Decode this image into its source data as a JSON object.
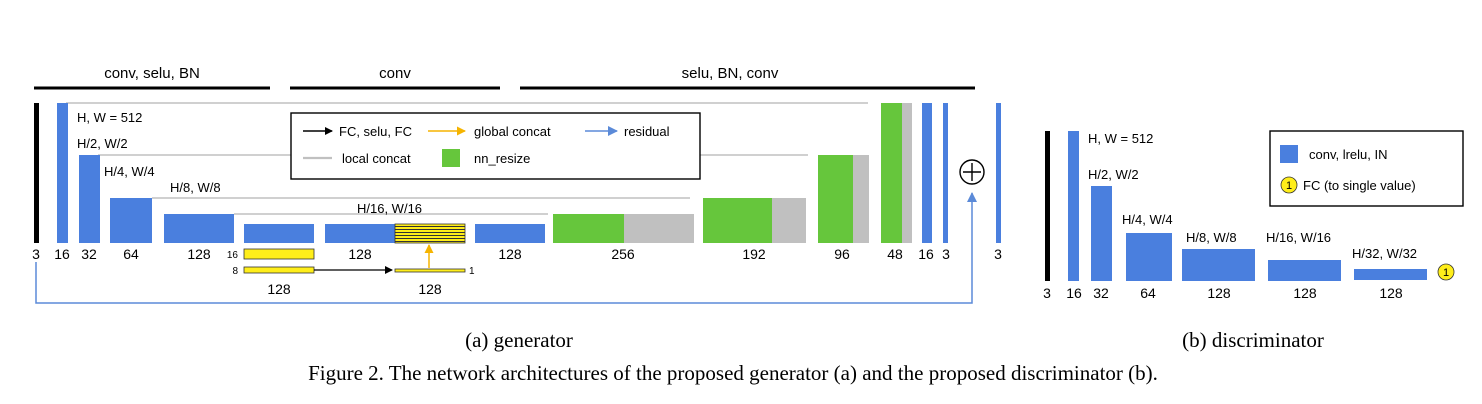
{
  "colors": {
    "block": "#4a7fde",
    "resize": "#66c63c",
    "concat_local": "#c0c0c0",
    "global": "#ffee1a",
    "input": "#000000",
    "residual_arrow": "#5b8ad8",
    "global_arrow": "#f5b400"
  },
  "generator": {
    "header_left": "conv, selu, BN",
    "header_mid": "conv",
    "header_right": "selu, BN, conv",
    "res_512": "H, W = 512",
    "res_2": "H/2, W/2",
    "res_4": "H/4, W/4",
    "res_8": "H/8, W/8",
    "res_16": "H/16, W/16",
    "ch_3a": "3",
    "ch_16a": "16",
    "ch_32": "32",
    "ch_64": "64",
    "ch_128a": "128",
    "ch_128b": "128",
    "ch_128c": "128",
    "ch_256": "256",
    "ch_192": "192",
    "ch_96": "96",
    "ch_48": "48",
    "ch_16b": "16",
    "ch_3b": "3",
    "ch_3out": "3",
    "g_16": "16",
    "g_8": "8",
    "g_1": "1",
    "g_128a": "128",
    "g_128b": "128",
    "plus_symbol": "⊕",
    "legend": {
      "fc": "FC, selu, FC",
      "global": "global concat",
      "residual": "residual",
      "local": "local concat",
      "resize": "nn_resize"
    },
    "caption": "(a) generator"
  },
  "discriminator": {
    "res_512": "H, W = 512",
    "res_2": "H/2, W/2",
    "res_4": "H/4, W/4",
    "res_8": "H/8, W/8",
    "res_16": "H/16, W/16",
    "res_32": "H/32, W/32",
    "ch_3": "3",
    "ch_16": "16",
    "ch_32": "32",
    "ch_64": "64",
    "ch_128a": "128",
    "ch_128b": "128",
    "ch_128c": "128",
    "fc_marker": "1",
    "legend": {
      "block": "conv, lrelu, IN",
      "fc_marker": "1",
      "fc": "FC (to single value)"
    },
    "caption": "(b) discriminator"
  },
  "figure_caption": "Figure 2. The network architectures of the proposed generator (a) and the proposed discriminator (b)."
}
